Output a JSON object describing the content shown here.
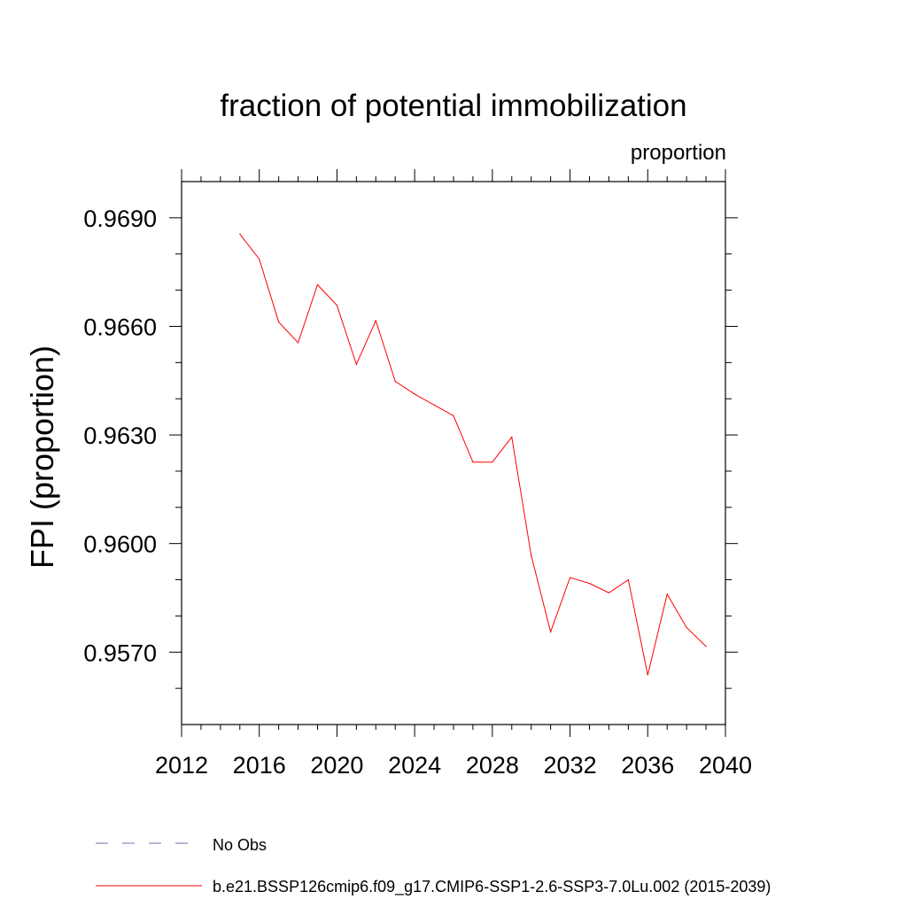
{
  "chart_data": {
    "type": "line",
    "title": "fraction of potential immobilization",
    "subtitle": "proportion",
    "xlabel": "",
    "ylabel": "FPI  (proportion)",
    "xlim": [
      2012,
      2040
    ],
    "ylim": [
      0.955,
      0.97
    ],
    "xticks": [
      2012,
      2016,
      2020,
      2024,
      2028,
      2032,
      2036,
      2040
    ],
    "xtick_labels": [
      "2012",
      "2016",
      "2020",
      "2024",
      "2028",
      "2032",
      "2036",
      "2040"
    ],
    "yticks": [
      0.957,
      0.96,
      0.963,
      0.966,
      0.969
    ],
    "ytick_labels": [
      "0.9570",
      "0.9600",
      "0.9630",
      "0.9660",
      "0.9690"
    ],
    "grid": false,
    "legend_position": "bottom",
    "series": [
      {
        "name": "No Obs",
        "color": "#7b6bb0",
        "dash": "dashed",
        "x": [],
        "y": []
      },
      {
        "name": "b.e21.BSSP126cmip6.f09_g17.CMIP6-SSP1-2.6-SSP3-7.0Lu.002 (2015-2039)",
        "color": "#ff0000",
        "dash": "solid",
        "x": [
          2015,
          2016,
          2017,
          2018,
          2019,
          2020,
          2021,
          2022,
          2023,
          2024,
          2025,
          2026,
          2027,
          2028,
          2029,
          2030,
          2031,
          2032,
          2033,
          2034,
          2035,
          2036,
          2037,
          2038,
          2039
        ],
        "y": [
          0.96855,
          0.96786,
          0.96612,
          0.96555,
          0.96715,
          0.96658,
          0.96495,
          0.96616,
          0.96448,
          0.96413,
          0.96383,
          0.96353,
          0.96225,
          0.96225,
          0.96294,
          0.95967,
          0.95756,
          0.95906,
          0.9589,
          0.95864,
          0.959,
          0.95637,
          0.9586,
          0.95768,
          0.95716
        ]
      }
    ]
  }
}
